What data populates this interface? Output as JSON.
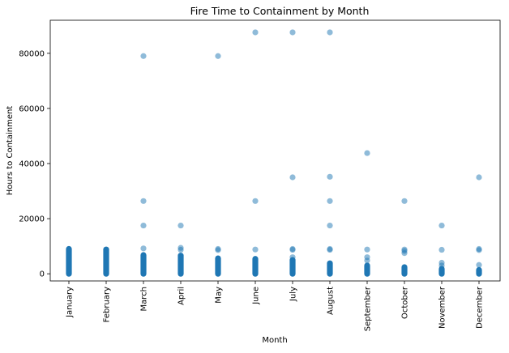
{
  "chart_data": {
    "type": "scatter",
    "title": "Fire Time to Containment by Month",
    "xlabel": "Month",
    "ylabel": "Hours to Containment",
    "categories": [
      "January",
      "February",
      "March",
      "April",
      "May",
      "June",
      "July",
      "August",
      "September",
      "October",
      "November",
      "December"
    ],
    "ylim": [
      -2600,
      92000
    ],
    "yticks": [
      0,
      20000,
      40000,
      60000,
      80000
    ],
    "grid": false,
    "legend": "none",
    "point_color": "#1f77b4",
    "point_alpha": 0.5,
    "series": [
      {
        "bands": [
          [
            0,
            9000
          ],
          [
            0,
            8800
          ],
          [
            0,
            6800
          ],
          [
            0,
            6600
          ],
          [
            0,
            5600
          ],
          [
            0,
            5400
          ],
          [
            0,
            5000
          ],
          [
            0,
            3800
          ],
          [
            0,
            3000
          ],
          [
            0,
            2400
          ],
          [
            0,
            1800
          ],
          [
            0,
            1400
          ]
        ],
        "points": [
          {
            "month": "January",
            "y": 9000
          },
          {
            "month": "February",
            "y": 8800
          },
          {
            "month": "March",
            "y": 79000
          },
          {
            "month": "March",
            "y": 26400
          },
          {
            "month": "March",
            "y": 17500
          },
          {
            "month": "March",
            "y": 9200
          },
          {
            "month": "April",
            "y": 17500
          },
          {
            "month": "April",
            "y": 9400
          },
          {
            "month": "April",
            "y": 8700
          },
          {
            "month": "May",
            "y": 79000
          },
          {
            "month": "May",
            "y": 9000
          },
          {
            "month": "May",
            "y": 8600
          },
          {
            "month": "June",
            "y": 87600
          },
          {
            "month": "June",
            "y": 26400
          },
          {
            "month": "June",
            "y": 8800
          },
          {
            "month": "July",
            "y": 87600
          },
          {
            "month": "July",
            "y": 35000
          },
          {
            "month": "July",
            "y": 9000
          },
          {
            "month": "July",
            "y": 8700
          },
          {
            "month": "July",
            "y": 6000
          },
          {
            "month": "August",
            "y": 87600
          },
          {
            "month": "August",
            "y": 35200
          },
          {
            "month": "August",
            "y": 26400
          },
          {
            "month": "August",
            "y": 17500
          },
          {
            "month": "August",
            "y": 9000
          },
          {
            "month": "August",
            "y": 8700
          },
          {
            "month": "September",
            "y": 43800
          },
          {
            "month": "September",
            "y": 8800
          },
          {
            "month": "September",
            "y": 6000
          },
          {
            "month": "September",
            "y": 4800
          },
          {
            "month": "October",
            "y": 26400
          },
          {
            "month": "October",
            "y": 8800
          },
          {
            "month": "October",
            "y": 8300
          },
          {
            "month": "October",
            "y": 7500
          },
          {
            "month": "November",
            "y": 17500
          },
          {
            "month": "November",
            "y": 8700
          },
          {
            "month": "November",
            "y": 4000
          },
          {
            "month": "November",
            "y": 3000
          },
          {
            "month": "December",
            "y": 35000
          },
          {
            "month": "December",
            "y": 9000
          },
          {
            "month": "December",
            "y": 8600
          },
          {
            "month": "December",
            "y": 3200
          }
        ]
      }
    ]
  }
}
